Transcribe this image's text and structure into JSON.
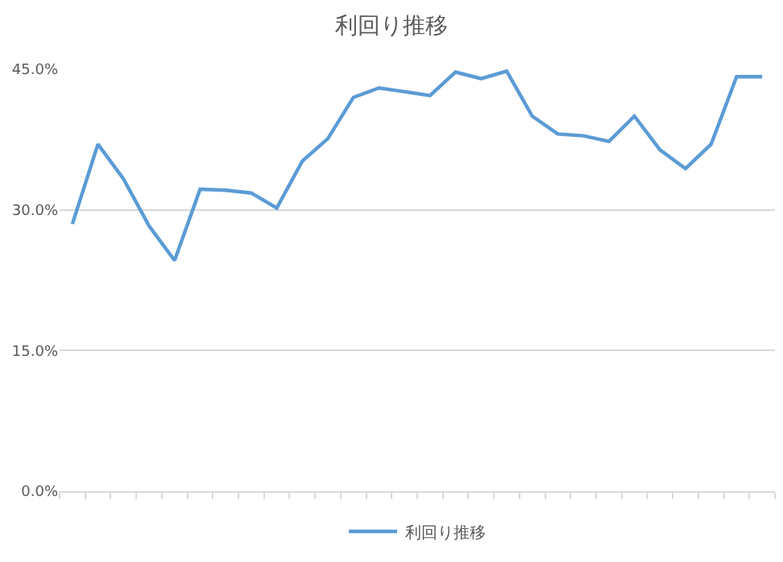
{
  "chart_data": {
    "type": "line",
    "title": "利回り推移",
    "categories": [
      null,
      null,
      null,
      null,
      null,
      null,
      null,
      null,
      null,
      null,
      null,
      null,
      null,
      null,
      null,
      null,
      null,
      null,
      null,
      null,
      null,
      null,
      null,
      null,
      null,
      null,
      null,
      null
    ],
    "series": [
      {
        "name": "利回り推移",
        "color": "#5b9bd5",
        "values": [
          28.5,
          37.0,
          33.3,
          28.3,
          24.6,
          32.2,
          32.1,
          31.8,
          30.2,
          35.2,
          37.6,
          42.0,
          43.0,
          42.6,
          42.2,
          44.7,
          44.0,
          44.8,
          40.0,
          38.1,
          37.9,
          37.3,
          40.0,
          36.4,
          34.4,
          37.0,
          44.2,
          44.2
        ]
      }
    ],
    "ylim": [
      0,
      45
    ],
    "yticks": [
      {
        "value": 0,
        "label": "0.0%"
      },
      {
        "value": 15,
        "label": "15.0%"
      },
      {
        "value": 30,
        "label": "30.0%"
      },
      {
        "value": 45,
        "label": "45.0%"
      }
    ],
    "grid": "y",
    "legend": "bottom",
    "marker": "none",
    "line_style": "solid"
  }
}
